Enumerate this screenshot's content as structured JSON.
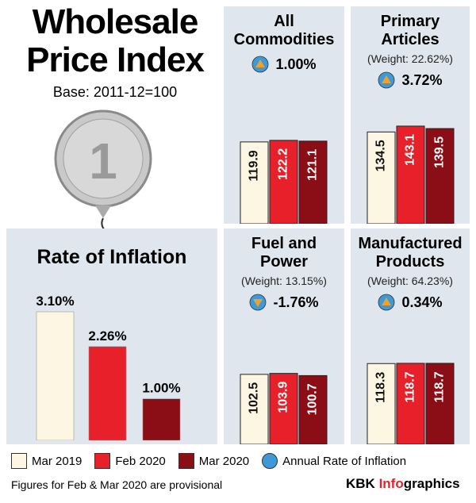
{
  "header": {
    "title": "Wholesale Price Index",
    "base": "Base: 2011-12=100"
  },
  "legend": {
    "series": [
      {
        "name": "Mar 2019",
        "color": "#fdf6e3"
      },
      {
        "name": "Feb 2020",
        "color": "#e8202a"
      },
      {
        "name": "Mar 2020",
        "color": "#8b0d16"
      }
    ],
    "rate": {
      "name": "Annual Rate of Inflation",
      "color": "#3d9ad6"
    }
  },
  "chart_data": [
    {
      "type": "bar",
      "title": "Rate of Inflation",
      "values": [
        3.1,
        2.26,
        1.0
      ],
      "value_labels": [
        "3.10%",
        "2.26%",
        "1.00%"
      ]
    },
    {
      "type": "bar",
      "title": "All Commodities",
      "annual_rate": 1.0,
      "annual_rate_label": "1.00%",
      "values": [
        119.9,
        122.2,
        121.1
      ]
    },
    {
      "type": "bar",
      "title": "Primary Articles",
      "subtitle": "(Weight: 22.62%)",
      "annual_rate": 3.72,
      "annual_rate_label": "3.72%",
      "values": [
        134.5,
        143.1,
        139.5
      ]
    },
    {
      "type": "bar",
      "title": "Fuel and Power",
      "subtitle": "(Weight: 13.15%)",
      "annual_rate": -1.76,
      "annual_rate_label": "-1.76%",
      "values": [
        102.5,
        103.9,
        100.7
      ]
    },
    {
      "type": "bar",
      "title": "Manufactured Products",
      "subtitle": "(Weight: 64.23%)",
      "annual_rate": 0.34,
      "annual_rate_label": "0.34%",
      "values": [
        118.3,
        118.7,
        118.7
      ]
    }
  ],
  "footer": {
    "note": "Figures for Feb & Mar 2020 are provisional",
    "brand": [
      "KBK",
      "Info",
      "graphics"
    ]
  }
}
